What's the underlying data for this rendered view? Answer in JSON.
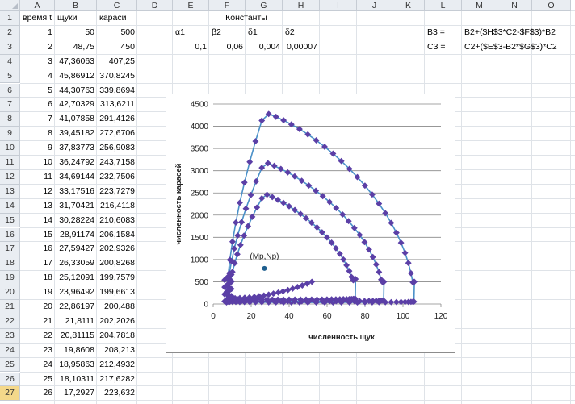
{
  "columns": [
    "A",
    "B",
    "C",
    "D",
    "E",
    "F",
    "G",
    "H",
    "I",
    "J",
    "K",
    "L",
    "M",
    "N",
    "O"
  ],
  "header_row": {
    "A": "время t",
    "B": "щуки",
    "C": "караси",
    "E_H": "Константы"
  },
  "const_labels": {
    "E": "α1",
    "F": "β2",
    "G": "δ1",
    "H": "δ2"
  },
  "const_values": {
    "E": "0,1",
    "F": "0,06",
    "G": "0,004",
    "H": "0,00007"
  },
  "formula_labels": {
    "L2": "B3 =",
    "L3": "C3 ="
  },
  "formulas": {
    "M2": "B2+($H$3*C2-$F$3)*B2",
    "M3": "C2+($E$3-B2*$G$3)*C2"
  },
  "selected_row": "27",
  "rows": [
    {
      "n": "1"
    },
    {
      "n": "2",
      "a": "1",
      "b": "50",
      "c": "500"
    },
    {
      "n": "3",
      "a": "2",
      "b": "48,75",
      "c": "450"
    },
    {
      "n": "4",
      "a": "3",
      "b": "47,36063",
      "c": "407,25"
    },
    {
      "n": "5",
      "a": "4",
      "b": "45,86912",
      "c": "370,8245"
    },
    {
      "n": "6",
      "a": "5",
      "b": "44,30763",
      "c": "339,8694"
    },
    {
      "n": "7",
      "a": "6",
      "b": "42,70329",
      "c": "313,6211"
    },
    {
      "n": "8",
      "a": "7",
      "b": "41,07858",
      "c": "291,4126"
    },
    {
      "n": "9",
      "a": "8",
      "b": "39,45182",
      "c": "272,6706"
    },
    {
      "n": "10",
      "a": "9",
      "b": "37,83773",
      "c": "256,9083"
    },
    {
      "n": "11",
      "a": "10",
      "b": "36,24792",
      "c": "243,7158"
    },
    {
      "n": "12",
      "a": "11",
      "b": "34,69144",
      "c": "232,7506"
    },
    {
      "n": "13",
      "a": "12",
      "b": "33,17516",
      "c": "223,7279"
    },
    {
      "n": "14",
      "a": "13",
      "b": "31,70421",
      "c": "216,4118"
    },
    {
      "n": "15",
      "a": "14",
      "b": "30,28224",
      "c": "210,6083"
    },
    {
      "n": "16",
      "a": "15",
      "b": "28,91174",
      "c": "206,1584"
    },
    {
      "n": "17",
      "a": "16",
      "b": "27,59427",
      "c": "202,9326"
    },
    {
      "n": "18",
      "a": "17",
      "b": "26,33059",
      "c": "200,8268"
    },
    {
      "n": "19",
      "a": "18",
      "b": "25,12091",
      "c": "199,7579"
    },
    {
      "n": "20",
      "a": "19",
      "b": "23,96492",
      "c": "199,6613"
    },
    {
      "n": "21",
      "a": "20",
      "b": "22,86197",
      "c": "200,488"
    },
    {
      "n": "22",
      "a": "21",
      "b": "21,8111",
      "c": "202,2026"
    },
    {
      "n": "23",
      "a": "22",
      "b": "20,81115",
      "c": "204,7818"
    },
    {
      "n": "24",
      "a": "23",
      "b": "19,8608",
      "c": "208,213"
    },
    {
      "n": "25",
      "a": "24",
      "b": "18,95863",
      "c": "212,4932"
    },
    {
      "n": "26",
      "a": "25",
      "b": "18,10311",
      "c": "217,6282"
    },
    {
      "n": "27",
      "a": "26",
      "b": "17,2927",
      "c": "223,632"
    }
  ],
  "chart_data": {
    "type": "scatter",
    "xlabel": "численность щук",
    "ylabel": "численность карасей",
    "xlim": [
      0,
      120
    ],
    "ylim": [
      0,
      4500
    ],
    "xticks": [
      "0",
      "20",
      "40",
      "60",
      "80",
      "100",
      "120"
    ],
    "yticks": [
      "0",
      "500",
      "1000",
      "1500",
      "2000",
      "2500",
      "3000",
      "3500",
      "4000",
      "4500"
    ],
    "grid": "horizontal",
    "marker_color": "#5b3fa6",
    "line_color": "#4a90c8",
    "equilibrium": {
      "label": "(Mp,Np)",
      "x": 27,
      "y": 800
    },
    "orbits": [
      {
        "xmin": 7,
        "xmax": 106,
        "ymin": 35,
        "ymax": 4450,
        "xtop": 27,
        "xright": 106,
        "yright": 500,
        "yleft": 300
      },
      {
        "xmin": 7,
        "xmax": 90,
        "ymin": 60,
        "ymax": 3270,
        "xtop": 27,
        "xright": 90,
        "yright": 500,
        "yleft": 350
      },
      {
        "xmin": 8,
        "xmax": 75,
        "ymin": 100,
        "ymax": 2520,
        "xtop": 27,
        "xright": 75,
        "yright": 560,
        "yleft": 420
      }
    ],
    "inner_spiral_end": {
      "x": 52,
      "y": 500
    }
  }
}
